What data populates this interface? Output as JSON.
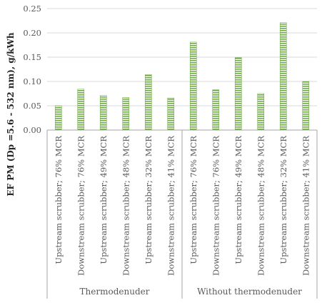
{
  "chart_data": {
    "type": "bar",
    "ylabel": "EF PM (Dp =5.6 - 532 nm), g/kWh",
    "ylim": [
      0,
      0.25
    ],
    "yticks": [
      0.0,
      0.05,
      0.1,
      0.15,
      0.2,
      0.25
    ],
    "ytick_labels": [
      "0.00",
      "0.05",
      "0.10",
      "0.15",
      "0.20",
      "0.25"
    ],
    "grid": true,
    "bar_color": "#70ad47",
    "groups": [
      {
        "name": "Thermodenuder",
        "categories": [
          "Upstream scrubber; 76% MCR",
          "Downstream scrubber; 76% MCR",
          "Upstream scrubber; 49% MCR",
          "Downstream scrubber; 48% MCR",
          "Upstream scrubber; 32% MCR",
          "Downstream scrubber; 41% MCR"
        ],
        "values": [
          0.05,
          0.084,
          0.071,
          0.067,
          0.114,
          0.066
        ]
      },
      {
        "name": "Without thermodenuder",
        "categories": [
          "Upstream scrubber; 76% MCR",
          "Downstream scrubber; 76% MCR",
          "Upstream scrubber; 49% MCR",
          "Downstream scrubber; 48% MCR",
          "Upstream scrubber; 32% MCR",
          "Downstream scrubber; 41% MCR"
        ],
        "values": [
          0.181,
          0.083,
          0.149,
          0.075,
          0.221,
          0.1
        ]
      }
    ]
  }
}
